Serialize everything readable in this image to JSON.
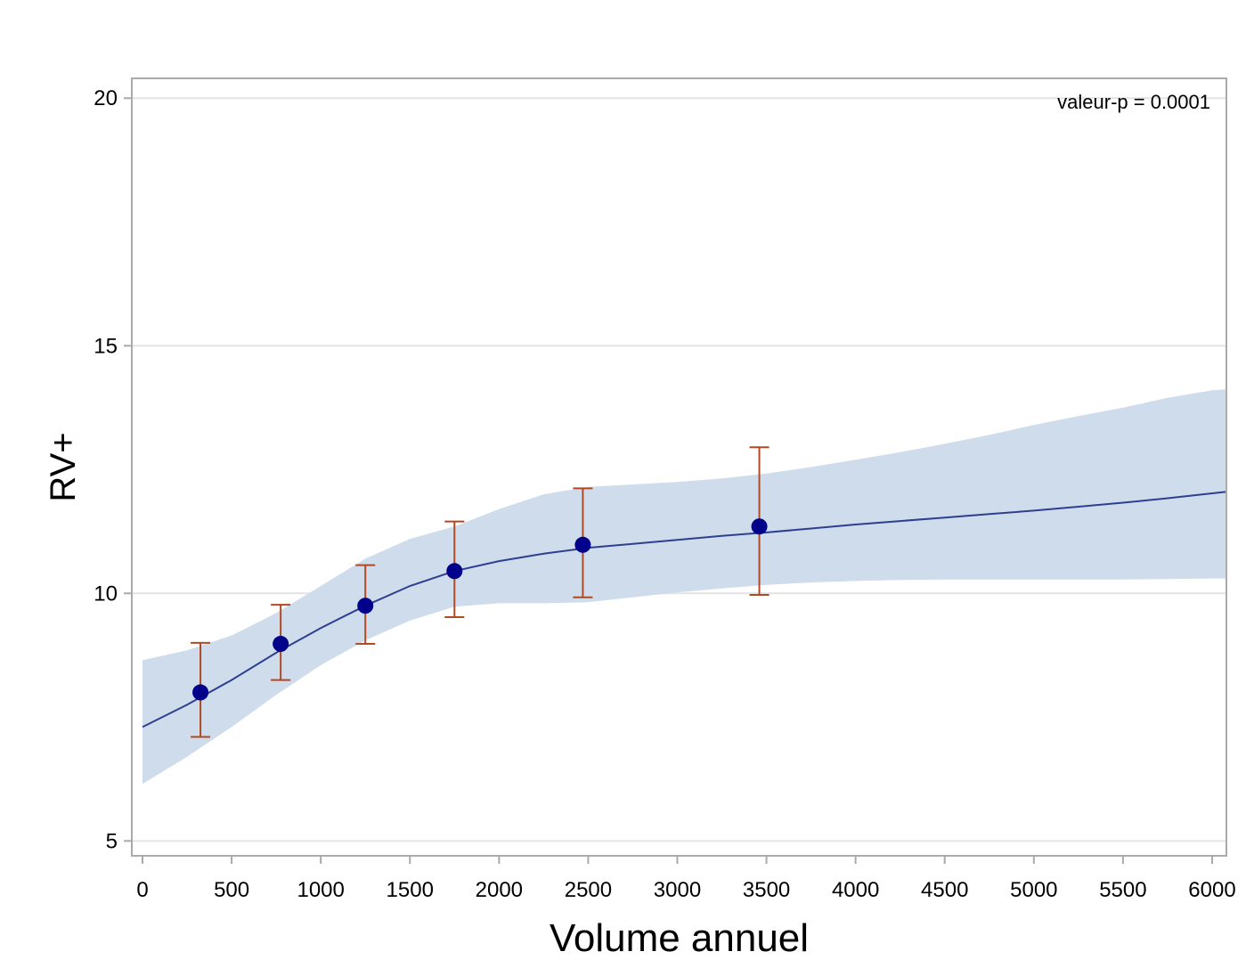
{
  "chart_data": {
    "type": "line",
    "title": "",
    "xlabel": "Volume annuel",
    "ylabel": "RV+",
    "xlim": [
      -60,
      6080
    ],
    "ylim": [
      4.7,
      20.4
    ],
    "xticks": [
      0,
      500,
      1000,
      1500,
      2000,
      2500,
      3000,
      3500,
      4000,
      4500,
      5000,
      5500,
      6000
    ],
    "yticks": [
      5,
      10,
      15,
      20
    ],
    "grid": {
      "horizontal": true,
      "vertical": false
    },
    "annotation": "valeur-p = 0.0001",
    "fit_line": {
      "x": [
        0,
        250,
        500,
        750,
        1000,
        1250,
        1500,
        1750,
        2000,
        2250,
        2500,
        2750,
        3000,
        3250,
        3500,
        3750,
        4000,
        4250,
        4500,
        4750,
        5000,
        5250,
        5500,
        5750,
        6000,
        6080
      ],
      "y": [
        7.3,
        7.75,
        8.25,
        8.8,
        9.3,
        9.75,
        10.15,
        10.45,
        10.65,
        10.8,
        10.92,
        11.0,
        11.08,
        11.16,
        11.23,
        11.31,
        11.39,
        11.46,
        11.53,
        11.6,
        11.67,
        11.75,
        11.83,
        11.92,
        12.02,
        12.05
      ]
    },
    "confidence_band": {
      "x": [
        0,
        250,
        500,
        750,
        1000,
        1250,
        1500,
        1750,
        2000,
        2250,
        2500,
        2750,
        3000,
        3250,
        3500,
        3750,
        4000,
        4250,
        4500,
        4750,
        5000,
        5250,
        5500,
        5750,
        6000,
        6080
      ],
      "lower": [
        6.15,
        6.7,
        7.3,
        7.95,
        8.55,
        9.05,
        9.45,
        9.73,
        9.8,
        9.8,
        9.82,
        9.92,
        10.02,
        10.1,
        10.17,
        10.22,
        10.25,
        10.27,
        10.28,
        10.28,
        10.28,
        10.28,
        10.28,
        10.29,
        10.3,
        10.3
      ],
      "upper": [
        8.65,
        8.85,
        9.15,
        9.6,
        10.15,
        10.7,
        11.1,
        11.35,
        11.7,
        12.0,
        12.15,
        12.2,
        12.25,
        12.32,
        12.42,
        12.55,
        12.7,
        12.85,
        13.02,
        13.2,
        13.4,
        13.58,
        13.75,
        13.95,
        14.1,
        14.12
      ]
    },
    "observed": [
      {
        "x": 325,
        "y": 8.0,
        "lower": 7.1,
        "upper": 9.0
      },
      {
        "x": 775,
        "y": 8.98,
        "lower": 8.25,
        "upper": 9.77
      },
      {
        "x": 1250,
        "y": 9.75,
        "lower": 8.98,
        "upper": 10.57
      },
      {
        "x": 1750,
        "y": 10.45,
        "lower": 9.52,
        "upper": 11.45
      },
      {
        "x": 2470,
        "y": 10.98,
        "lower": 9.92,
        "upper": 12.12
      },
      {
        "x": 3460,
        "y": 11.35,
        "lower": 9.97,
        "upper": 12.95
      }
    ],
    "colors": {
      "band": "#cfdcec",
      "fit_line": "#2f3f8f",
      "marker": "#00008b",
      "error_bar": "#b04a24",
      "grid": "#e4e4e4",
      "axis": "#aaaaaa"
    }
  }
}
